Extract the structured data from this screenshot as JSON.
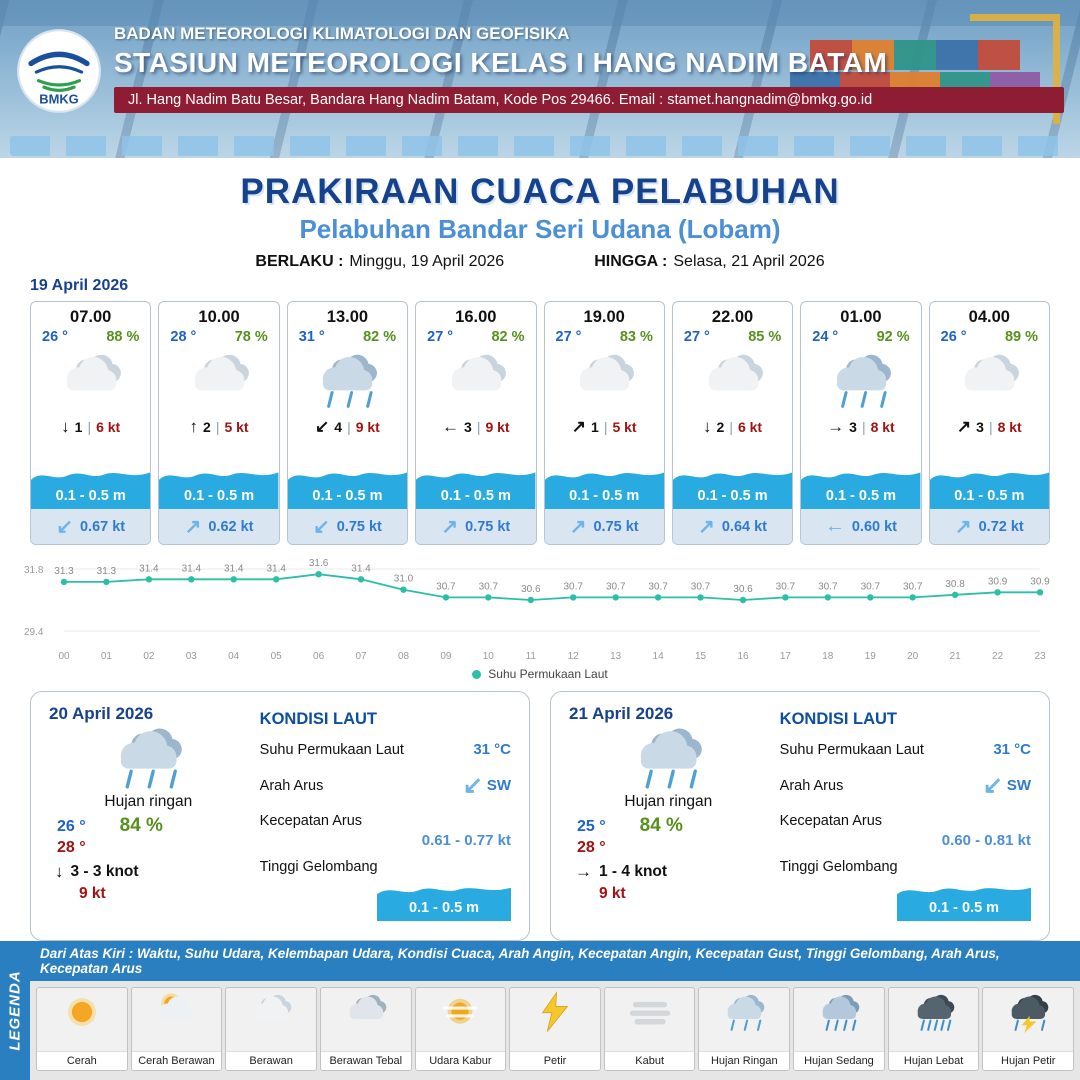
{
  "ui": {
    "separator": "|"
  },
  "header": {
    "logo_text": "BMKG",
    "agency": "BADAN METEOROLOGI KLIMATOLOGI DAN GEOFISIKA",
    "station": "STASIUN METEOROLOGI KELAS I HANG NADIM BATAM",
    "address": "Jl. Hang Nadim Batu Besar, Bandara Hang Nadim Batam, Kode Pos 29466. Email : stamet.hangnadim@bmkg.go.id"
  },
  "title": {
    "main": "PRAKIRAAN CUACA PELABUHAN",
    "subtitle": "Pelabuhan Bandar Seri Udana (Lobam)",
    "valid_label": "BERLAKU :",
    "valid_value": "Minggu, 19 April 2026",
    "until_label": "HINGGA :",
    "until_value": "Selasa, 21 April 2026"
  },
  "forecast": {
    "date": "19 April 2026",
    "cards": [
      {
        "time": "07.00",
        "temp": "26 °",
        "humidity": "88 %",
        "icon": "cloudy",
        "wind_dir": "↓",
        "wind_val": "1",
        "wind_speed": "6 kt",
        "wave": "0.1 - 0.5 m",
        "current_dir": "↙",
        "current": "0.67 kt"
      },
      {
        "time": "10.00",
        "temp": "28 °",
        "humidity": "78 %",
        "icon": "cloudy",
        "wind_dir": "↑",
        "wind_val": "2",
        "wind_speed": "5 kt",
        "wave": "0.1 - 0.5 m",
        "current_dir": "↗",
        "current": "0.62 kt"
      },
      {
        "time": "13.00",
        "temp": "31 °",
        "humidity": "82 %",
        "icon": "rain",
        "wind_dir": "↙",
        "wind_val": "4",
        "wind_speed": "9 kt",
        "wave": "0.1 - 0.5 m",
        "current_dir": "↙",
        "current": "0.75 kt"
      },
      {
        "time": "16.00",
        "temp": "27 °",
        "humidity": "82 %",
        "icon": "cloudy",
        "wind_dir": "←",
        "wind_val": "3",
        "wind_speed": "9 kt",
        "wave": "0.1 - 0.5 m",
        "current_dir": "↗",
        "current": "0.75 kt"
      },
      {
        "time": "19.00",
        "temp": "27 °",
        "humidity": "83 %",
        "icon": "cloudy",
        "wind_dir": "↗",
        "wind_val": "1",
        "wind_speed": "5 kt",
        "wave": "0.1 - 0.5 m",
        "current_dir": "↗",
        "current": "0.75 kt"
      },
      {
        "time": "22.00",
        "temp": "27 °",
        "humidity": "85 %",
        "icon": "cloudy",
        "wind_dir": "↓",
        "wind_val": "2",
        "wind_speed": "6 kt",
        "wave": "0.1 - 0.5 m",
        "current_dir": "↗",
        "current": "0.64 kt"
      },
      {
        "time": "01.00",
        "temp": "24 °",
        "humidity": "92 %",
        "icon": "rain",
        "wind_dir": "→",
        "wind_val": "3",
        "wind_speed": "8 kt",
        "wave": "0.1 - 0.5 m",
        "current_dir": "←",
        "current": "0.60 kt"
      },
      {
        "time": "04.00",
        "temp": "26 °",
        "humidity": "89 %",
        "icon": "cloudy",
        "wind_dir": "↗",
        "wind_val": "3",
        "wind_speed": "8 kt",
        "wave": "0.1 - 0.5 m",
        "current_dir": "↗",
        "current": "0.72 kt"
      }
    ]
  },
  "chart_data": {
    "type": "line",
    "title": "Suhu Permukaan Laut",
    "series_label": "Suhu Permukaan Laut",
    "x": [
      "00",
      "01",
      "02",
      "03",
      "04",
      "05",
      "06",
      "07",
      "08",
      "09",
      "10",
      "11",
      "12",
      "13",
      "14",
      "15",
      "16",
      "17",
      "18",
      "19",
      "20",
      "21",
      "22",
      "23"
    ],
    "values": [
      31.3,
      31.3,
      31.4,
      31.4,
      31.4,
      31.4,
      31.6,
      31.4,
      31.0,
      30.7,
      30.7,
      30.6,
      30.7,
      30.7,
      30.7,
      30.7,
      30.6,
      30.7,
      30.7,
      30.7,
      30.7,
      30.8,
      30.9,
      30.9
    ],
    "ylim": [
      29.4,
      31.8
    ],
    "xlabel": "",
    "ylabel": "",
    "grid": false,
    "legend_position": "bottom",
    "line_color": "#2bbfa8"
  },
  "daily": [
    {
      "date": "20 April 2026",
      "icon": "rain",
      "condition": "Hujan ringan",
      "temp_min": "26 °",
      "humidity": "84 %",
      "temp_max": "28 °",
      "wind_dir": "↓",
      "wind_range": "3 - 3 knot",
      "gust": "9 kt",
      "sea": {
        "title": "KONDISI LAUT",
        "sst_label": "Suhu Permukaan Laut",
        "sst": "31 °C",
        "dir_label": "Arah Arus",
        "dir_glyph": "↙",
        "dir": "SW",
        "speed_label": "Kecepatan Arus",
        "speed": "0.61 - 0.77 kt",
        "wave_label": "Tinggi Gelombang",
        "wave": "0.1 - 0.5 m"
      }
    },
    {
      "date": "21 April 2026",
      "icon": "rain",
      "condition": "Hujan ringan",
      "temp_min": "25 °",
      "humidity": "84 %",
      "temp_max": "28 °",
      "wind_dir": "→",
      "wind_range": "1 - 4 knot",
      "gust": "9 kt",
      "sea": {
        "title": "KONDISI LAUT",
        "sst_label": "Suhu Permukaan Laut",
        "sst": "31 °C",
        "dir_label": "Arah Arus",
        "dir_glyph": "↙",
        "dir": "SW",
        "speed_label": "Kecepatan Arus",
        "speed": "0.60 - 0.81 kt",
        "wave_label": "Tinggi Gelombang",
        "wave": "0.1 - 0.5 m"
      }
    }
  ],
  "legend": {
    "vertical_label": "LEGENDA",
    "description": "Dari Atas Kiri : Waktu, Suhu Udara, Kelembapan Udara, Kondisi Cuaca, Arah Angin, Kecepatan Angin, Kecepatan Gust, Tinggi Gelombang, Arah Arus, Kecepatan Arus",
    "items": [
      {
        "label": "Cerah",
        "icon": "sun"
      },
      {
        "label": "Cerah Berawan",
        "icon": "sun-cloud"
      },
      {
        "label": "Berawan",
        "icon": "cloud"
      },
      {
        "label": "Berawan Tebal",
        "icon": "clouds"
      },
      {
        "label": "Udara Kabur",
        "icon": "haze"
      },
      {
        "label": "Petir",
        "icon": "lightning"
      },
      {
        "label": "Kabut",
        "icon": "fog"
      },
      {
        "label": "Hujan Ringan",
        "icon": "rain-light"
      },
      {
        "label": "Hujan Sedang",
        "icon": "rain-medium"
      },
      {
        "label": "Hujan Lebat",
        "icon": "rain-heavy"
      },
      {
        "label": "Hujan Petir",
        "icon": "storm"
      }
    ]
  },
  "colors": {
    "accent_blue": "#1d62c9",
    "dark_blue": "#16418d",
    "subtitle_blue": "#4b8fd5",
    "humidity_green": "#55911c",
    "wind_red": "#a31111",
    "wave_blue": "#29abe2",
    "maroon": "#8e1c33",
    "legend_blue": "#2a7fc1",
    "line_teal": "#2bbfa8"
  }
}
